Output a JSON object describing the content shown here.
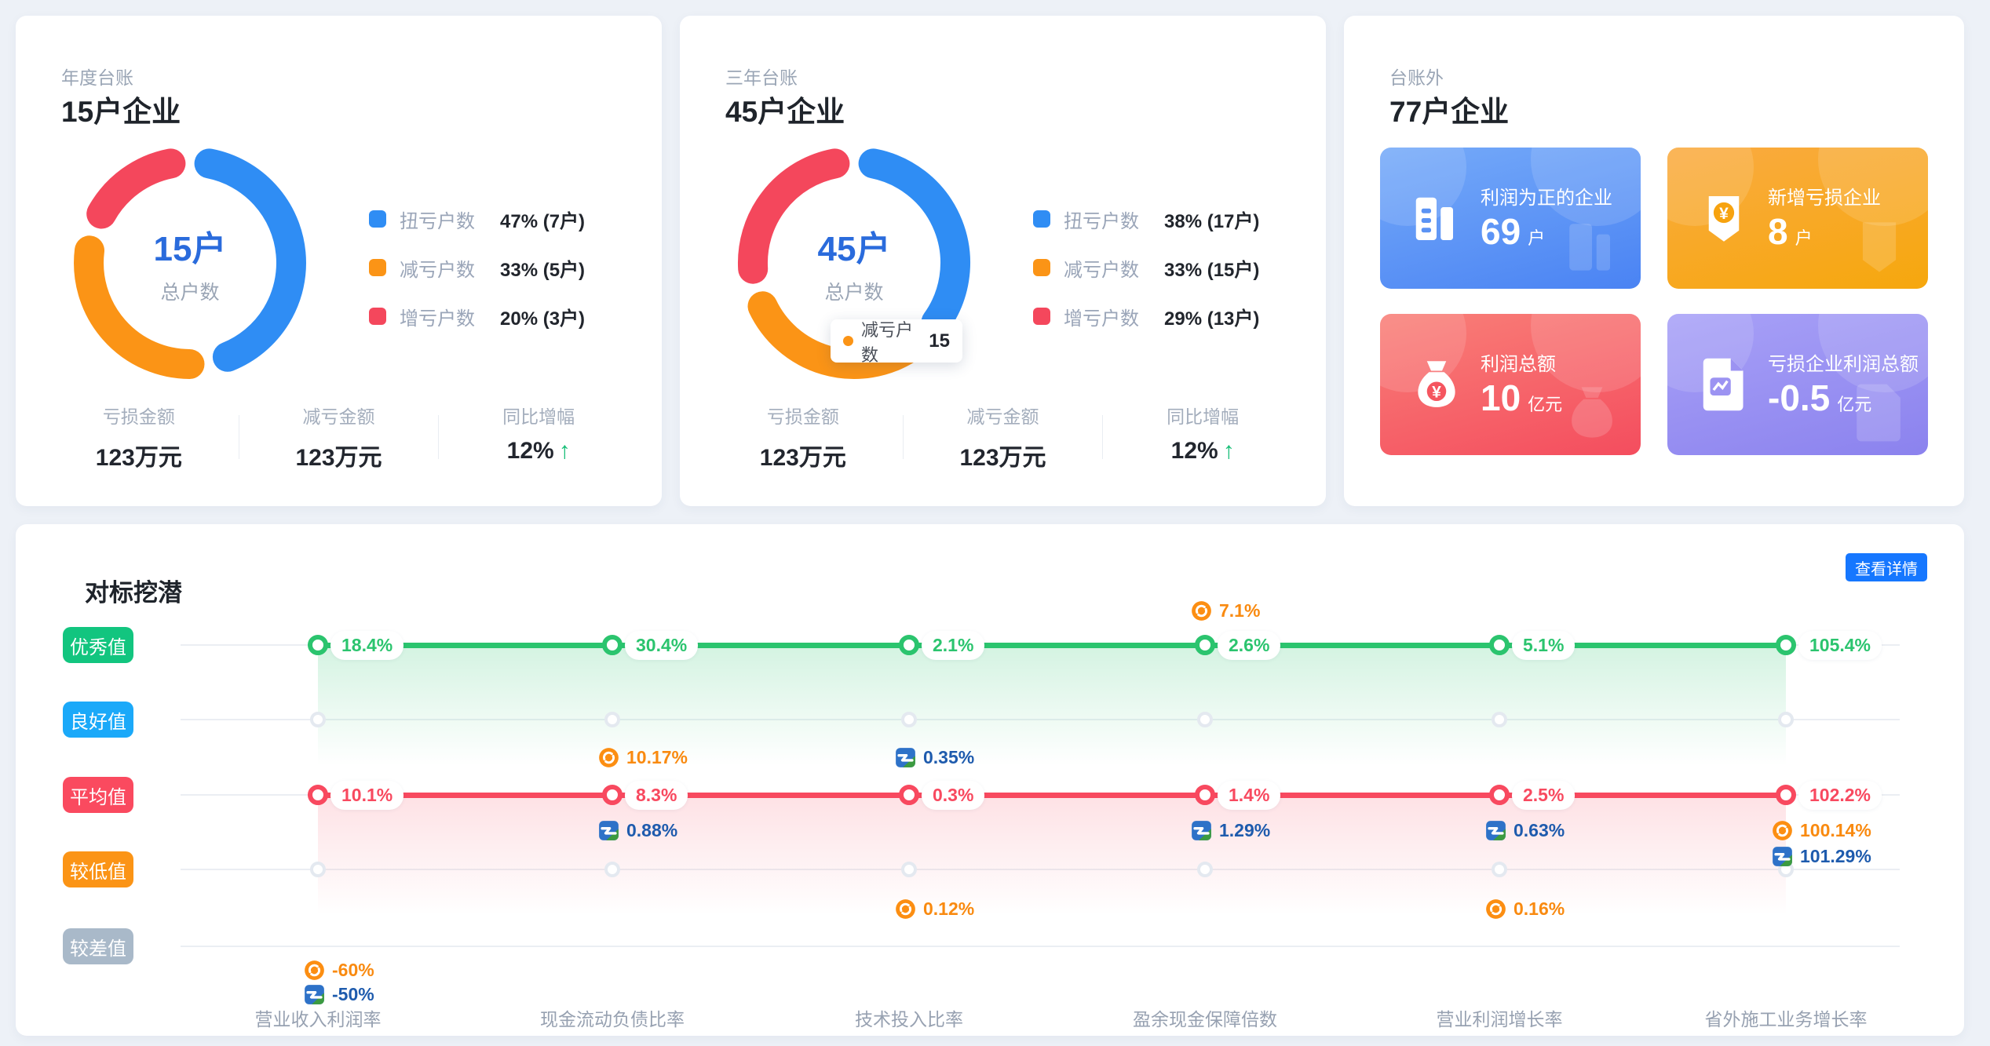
{
  "cards": {
    "annual": {
      "subtitle": "年度台账",
      "title": "15户企业",
      "stats": [
        {
          "label": "亏损金额",
          "value": "123万元"
        },
        {
          "label": "减亏金额",
          "value": "123万元"
        },
        {
          "label": "同比增幅",
          "value": "12%",
          "trend": "up"
        }
      ]
    },
    "three_year": {
      "subtitle": "三年台账",
      "title": "45户企业",
      "tooltip": {
        "label": "减亏户数",
        "value": "15",
        "color": "#FB9416"
      },
      "stats": [
        {
          "label": "亏损金额",
          "value": "123万元"
        },
        {
          "label": "减亏金额",
          "value": "123万元"
        },
        {
          "label": "同比增幅",
          "value": "12%",
          "trend": "up"
        }
      ]
    },
    "outside": {
      "subtitle": "台账外",
      "title": "77户企业",
      "tiles": [
        {
          "label": "利润为正的企业",
          "value": "69",
          "unit": "户",
          "icon": "building-icon",
          "colors": {
            "from": "#75AAF9",
            "to": "#4A83F3",
            "accent": "#5B93F4"
          }
        },
        {
          "label": "新增亏损企业",
          "value": "8",
          "unit": "户",
          "icon": "shield-icon",
          "colors": {
            "from": "#FAAB41",
            "to": "#F6A70D",
            "accent": "#F7A30F"
          }
        },
        {
          "label": "利润总额",
          "value": "10",
          "unit": "亿元",
          "icon": "moneybag-icon",
          "colors": {
            "from": "#F97F78",
            "to": "#F44D5E",
            "accent": "#F5555F"
          }
        },
        {
          "label": "亏损企业利润总额",
          "value": "-0.5",
          "unit": "亿元",
          "icon": "document-icon",
          "colors": {
            "from": "#A8A1F7",
            "to": "#8B82EE",
            "accent": "#9C93F2"
          }
        }
      ]
    }
  },
  "benchmark": {
    "title": "对标挖潜",
    "detail_button": "查看详情"
  },
  "chart_data": [
    {
      "type": "pie",
      "name": "annual-donut",
      "title": "年度台账 15户企业",
      "center_value": "15户",
      "center_label": "总户数",
      "segments": [
        {
          "label": "扭亏户数",
          "pct": 47,
          "display": "47%  (7户)",
          "color": "#2F8DF4"
        },
        {
          "label": "减亏户数",
          "pct": 33,
          "display": "33%  (5户)",
          "color": "#FB9416"
        },
        {
          "label": "增亏户数",
          "pct": 20,
          "display": "20%  (3户)",
          "color": "#F4475C"
        }
      ]
    },
    {
      "type": "pie",
      "name": "three-year-donut",
      "title": "三年台账 45户企业",
      "center_value": "45户",
      "center_label": "总户数",
      "segments": [
        {
          "label": "扭亏户数",
          "pct": 38,
          "display": "38%  (17户)",
          "color": "#2F8DF4"
        },
        {
          "label": "减亏户数",
          "pct": 33,
          "display": "33%  (15户)",
          "color": "#FB9416"
        },
        {
          "label": "增亏户数",
          "pct": 29,
          "display": "29%  (13户)",
          "color": "#F4475C"
        }
      ]
    },
    {
      "type": "line",
      "name": "benchmark-chart",
      "title": "对标挖潜",
      "categories": [
        "营业收入利润率",
        "现金流动负债比率",
        "技术投入比率",
        "盈余现金保障倍数",
        "营业利润增长率",
        "省外施工业务增长率"
      ],
      "rows": [
        {
          "name": "优秀值",
          "color": "#12C57F",
          "line_color": "#2BC46E",
          "points": true,
          "values": [
            "18.4%",
            "30.4%",
            "2.1%",
            "2.6%",
            "5.1%",
            "105.4%"
          ]
        },
        {
          "name": "良好值",
          "color": "#1BA9F9",
          "points": true,
          "values": null
        },
        {
          "name": "平均值",
          "color": "#FA4A5F",
          "line_color": "#F8495F",
          "points": true,
          "values": [
            "10.1%",
            "8.3%",
            "0.3%",
            "1.4%",
            "2.5%",
            "102.2%"
          ]
        },
        {
          "name": "较低值",
          "color": "#FB9416",
          "points": true,
          "values": null
        },
        {
          "name": "较差值",
          "color": "#A9B9C9",
          "points": false,
          "values": null
        }
      ],
      "markers": [
        {
          "company": "orange-swirl",
          "category": 0,
          "value": "-60%",
          "slot": "below_worst",
          "order": 0
        },
        {
          "company": "blue-green",
          "category": 0,
          "value": "-50%",
          "slot": "below_worst",
          "order": 1
        },
        {
          "company": "orange-swirl",
          "category": 1,
          "value": "10.17%",
          "slot": "between_good_average",
          "order": 0
        },
        {
          "company": "blue-green",
          "category": 1,
          "value": "0.88%",
          "slot": "below_average",
          "order": 0
        },
        {
          "company": "blue-green",
          "category": 2,
          "value": "0.35%",
          "slot": "between_good_average",
          "order": 0
        },
        {
          "company": "orange-swirl",
          "category": 2,
          "value": "0.12%",
          "slot": "between_low_worst",
          "order": 0
        },
        {
          "company": "orange-swirl",
          "category": 3,
          "value": "7.1%",
          "slot": "above_excellent",
          "order": 0
        },
        {
          "company": "blue-green",
          "category": 3,
          "value": "1.29%",
          "slot": "below_average",
          "order": 0
        },
        {
          "company": "blue-green",
          "category": 4,
          "value": "0.63%",
          "slot": "below_average",
          "order": 0
        },
        {
          "company": "orange-swirl",
          "category": 4,
          "value": "0.16%",
          "slot": "between_low_worst",
          "order": 0
        },
        {
          "company": "orange-swirl",
          "category": 5,
          "value": "100.14%",
          "slot": "below_average",
          "order": 0
        },
        {
          "company": "blue-green",
          "category": 5,
          "value": "101.29%",
          "slot": "below_average",
          "order": 1
        }
      ],
      "marker_colors": {
        "orange-swirl": "#F98A10",
        "blue-green": "#1E5BAD"
      }
    }
  ]
}
